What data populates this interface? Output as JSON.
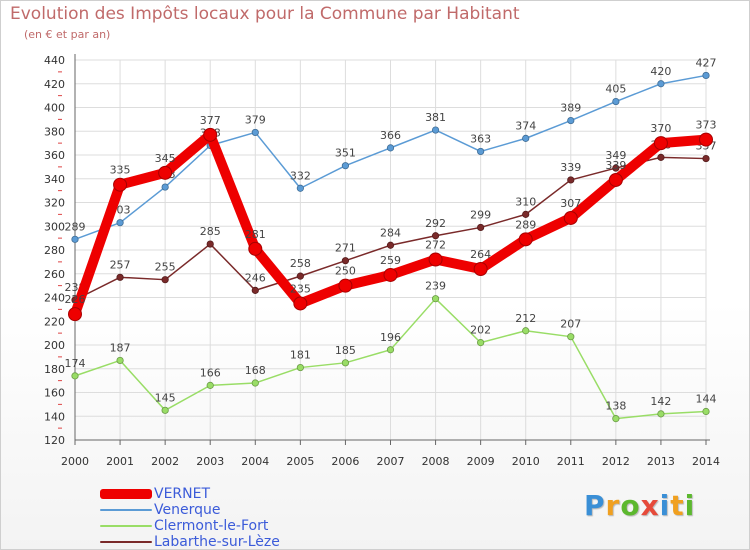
{
  "header": {
    "title": "Evolution des Impôts locaux pour la Commune par Habitant",
    "subtitle": "(en € et par an)"
  },
  "chart_data": {
    "type": "line",
    "title": "Evolution des Impôts locaux pour la Commune par Habitant",
    "subtitle": "(en € et par an)",
    "x": [
      2000,
      2001,
      2002,
      2003,
      2004,
      2005,
      2006,
      2007,
      2008,
      2009,
      2010,
      2011,
      2012,
      2013,
      2014
    ],
    "ylim": [
      120,
      440
    ],
    "yticks": [
      120,
      140,
      160,
      180,
      200,
      220,
      240,
      260,
      280,
      300,
      320,
      340,
      360,
      380,
      400,
      420,
      440
    ],
    "grid": true,
    "legend_position": "bottom-left",
    "series": [
      {
        "name": "Venerque",
        "color": "#5b9bd5",
        "values": [
          289,
          303,
          333,
          368,
          379,
          332,
          351,
          366,
          381,
          363,
          374,
          389,
          405,
          420,
          427
        ]
      },
      {
        "name": "Clermont-le-Fort",
        "color": "#99dd66",
        "values": [
          174,
          187,
          145,
          166,
          168,
          181,
          185,
          196,
          239,
          202,
          212,
          207,
          138,
          142,
          144
        ]
      },
      {
        "name": "Labarthe-sur-Lèze",
        "color": "#7a2a2a",
        "values": [
          238,
          257,
          255,
          285,
          246,
          258,
          271,
          284,
          292,
          299,
          310,
          339,
          349,
          358,
          357
        ]
      },
      {
        "name": "VERNET",
        "color": "#ee0000",
        "values": [
          226,
          335,
          345,
          377,
          281,
          235,
          250,
          259,
          272,
          264,
          289,
          307,
          339,
          370,
          373
        ]
      }
    ]
  },
  "legend": {
    "items": [
      {
        "label": "VERNET",
        "color": "#ee0000"
      },
      {
        "label": "Venerque",
        "color": "#5b9bd5"
      },
      {
        "label": "Clermont-le-Fort",
        "color": "#99dd66"
      },
      {
        "label": "Labarthe-sur-Lèze",
        "color": "#7a2a2a"
      }
    ]
  },
  "logo": {
    "text": "Proxiti"
  }
}
